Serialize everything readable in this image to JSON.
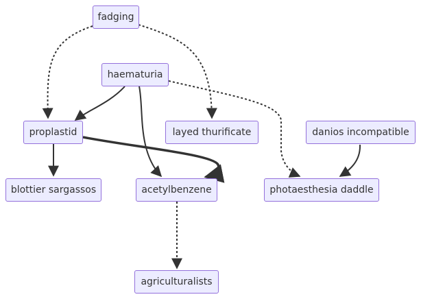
{
  "diagram": {
    "colors": {
      "node_fill": "#ececff",
      "node_border": "#9370db",
      "text": "#333333",
      "edge": "#333333"
    },
    "nodes": [
      {
        "id": "fadging",
        "label": "fadging"
      },
      {
        "id": "haematuria",
        "label": "haematuria"
      },
      {
        "id": "proplastid",
        "label": "proplastid"
      },
      {
        "id": "layed_thurificate",
        "label": "layed thurificate"
      },
      {
        "id": "danios_incompatible",
        "label": "danios incompatible"
      },
      {
        "id": "blottier_sargassos",
        "label": "blottier sargassos"
      },
      {
        "id": "acetylbenzene",
        "label": "acetylbenzene"
      },
      {
        "id": "photaesthesia_daddle",
        "label": "photaesthesia daddle"
      },
      {
        "id": "agriculturalists",
        "label": "agriculturalists"
      }
    ],
    "edges": [
      {
        "from": "fadging",
        "to": "proplastid",
        "style": "dotted"
      },
      {
        "from": "fadging",
        "to": "layed_thurificate",
        "style": "dotted"
      },
      {
        "from": "haematuria",
        "to": "proplastid",
        "style": "solid"
      },
      {
        "from": "haematuria",
        "to": "acetylbenzene",
        "style": "solid"
      },
      {
        "from": "haematuria",
        "to": "photaesthesia_daddle",
        "style": "dotted"
      },
      {
        "from": "proplastid",
        "to": "blottier_sargassos",
        "style": "solid"
      },
      {
        "from": "proplastid",
        "to": "acetylbenzene",
        "style": "thick"
      },
      {
        "from": "danios_incompatible",
        "to": "photaesthesia_daddle",
        "style": "solid"
      },
      {
        "from": "acetylbenzene",
        "to": "agriculturalists",
        "style": "dotted"
      }
    ]
  }
}
